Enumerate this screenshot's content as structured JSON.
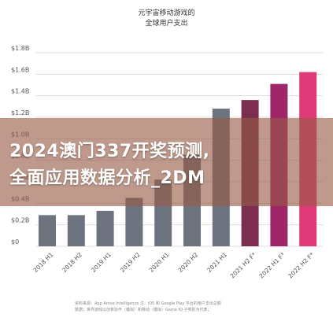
{
  "header": {
    "title_line1": "元宇宙移动游戏的",
    "title_line2": "全球用户支出"
  },
  "banner": {
    "line1": "2024澳门337开奖预测,",
    "line2": "全面应用数据分析_2DM"
  },
  "source": {
    "line1": "资料来源：App Annie Intelligence 注：iOS 和 Google Play 平台的用户支出总额",
    "line2": "数据；世界游戏以创意协作（模拟）和移动（模拟）Game IQ 子类别为代表；"
  },
  "colors": {
    "actual": "#6d7480",
    "forecast_2021": "#7b2d52",
    "forecast_2022h1": "#a0266a",
    "forecast_2022h2": "#e03a79",
    "grid": "#dddddd",
    "axis_text": "#555555"
  },
  "chart_data": {
    "type": "bar",
    "categories": [
      "2018 H1",
      "2018 H2",
      "2019 H1",
      "2019 H2",
      "2020 H1",
      "2020 H2",
      "2021 H1",
      "2021 H2 F*",
      "2022 H1 F*",
      "2022 H2 F*"
    ],
    "values": [
      0.29,
      0.29,
      0.33,
      0.45,
      0.62,
      0.85,
      1.28,
      1.36,
      1.51,
      1.62
    ],
    "ylim": [
      0,
      1.8
    ],
    "yticks": [
      "$0",
      "$0.2B",
      "$0.4B",
      "$0.6B",
      "$0.8B",
      "$1.0B",
      "$1.2B",
      "$1.4B",
      "$1.6B",
      "$1.8B"
    ],
    "grid": true,
    "title": "元宇宙移动游戏的全球用户支出"
  }
}
